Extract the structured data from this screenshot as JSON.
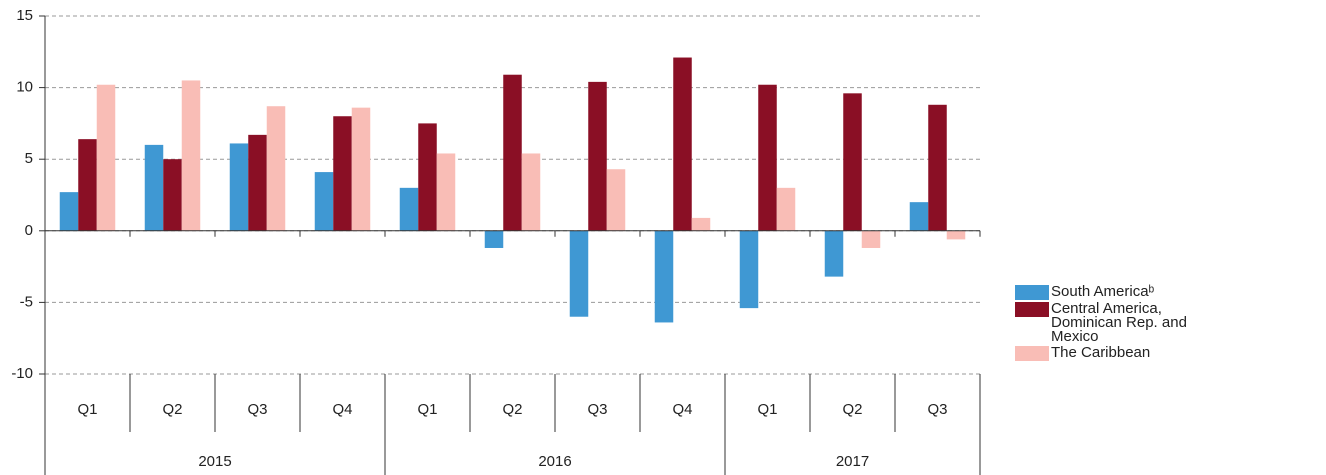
{
  "chart_data": {
    "type": "bar",
    "categories": [
      "Q1",
      "Q2",
      "Q3",
      "Q4",
      "Q1",
      "Q2",
      "Q3",
      "Q4",
      "Q1",
      "Q2",
      "Q3"
    ],
    "groups": [
      {
        "label": "2015",
        "count": 4
      },
      {
        "label": "2016",
        "count": 4
      },
      {
        "label": "2017",
        "count": 3
      }
    ],
    "series": [
      {
        "name": "South Americaᵇ",
        "color": "#3f98d3",
        "values": [
          2.7,
          6.0,
          6.1,
          4.1,
          3.0,
          -1.2,
          -6.0,
          -6.4,
          -5.4,
          -3.2,
          2.0
        ]
      },
      {
        "name": "Central America, Dominican Rep. and Mexico",
        "color": "#8a0f25",
        "values": [
          6.4,
          5.0,
          6.7,
          8.0,
          7.5,
          10.9,
          10.4,
          12.1,
          10.2,
          9.6,
          8.8
        ]
      },
      {
        "name": "The Caribbean",
        "color": "#f9bdb6",
        "values": [
          10.2,
          10.5,
          8.7,
          8.6,
          5.4,
          5.4,
          4.3,
          0.9,
          3.0,
          -1.2,
          -0.6
        ]
      }
    ],
    "ylim": [
      -10,
      15
    ],
    "yticks": [
      15,
      10,
      5,
      0,
      -5,
      -10
    ],
    "grid": true,
    "legend": "right"
  }
}
